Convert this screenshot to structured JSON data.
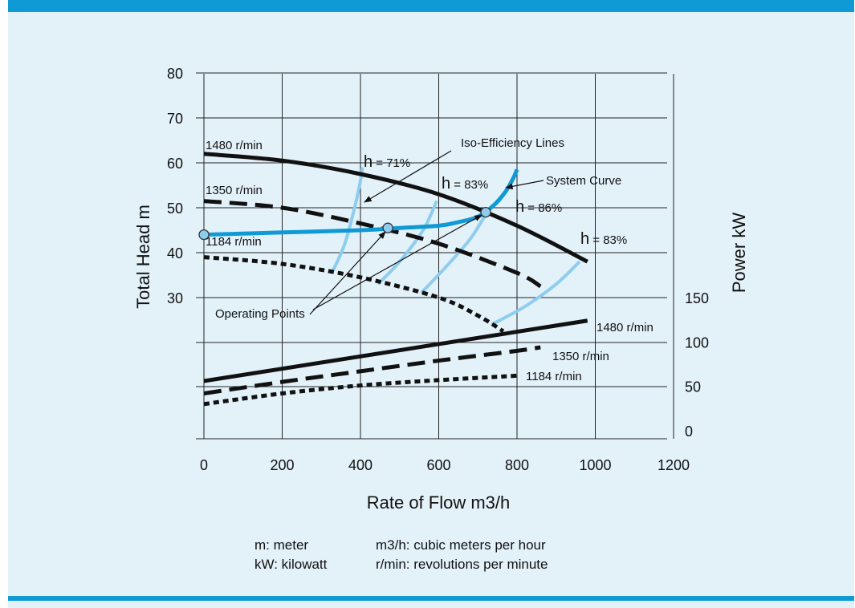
{
  "chart_data": {
    "type": "line",
    "xlabel": "Rate of Flow m3/h",
    "ylabel_left": "Total Head m",
    "ylabel_right": "Power kW",
    "x_ticks": [
      0,
      200,
      400,
      600,
      800,
      1000,
      1200
    ],
    "head_ticks": [
      30,
      40,
      50,
      60,
      70,
      80
    ],
    "power_ticks": [
      0,
      50,
      100,
      150
    ],
    "xlim": [
      0,
      1200
    ],
    "head_lim": [
      10,
      80
    ],
    "power_lim": [
      0,
      200
    ],
    "grid": true,
    "head_curves": [
      {
        "name": "1480 r/min",
        "style": "solid",
        "x": [
          0,
          200,
          400,
          600,
          800,
          980
        ],
        "y": [
          62,
          60.5,
          57.5,
          53,
          46,
          38
        ]
      },
      {
        "name": "1350 r/min",
        "style": "dashed",
        "x": [
          0,
          200,
          400,
          600,
          800,
          860
        ],
        "y": [
          51.5,
          50,
          46.5,
          42,
          35.5,
          32.5
        ]
      },
      {
        "name": "1184 r/min",
        "style": "dotted",
        "x": [
          0,
          200,
          400,
          600,
          700,
          765
        ],
        "y": [
          39,
          37.5,
          34.5,
          30,
          26,
          22.5
        ]
      }
    ],
    "power_curves": [
      {
        "name": "1480 r/min",
        "style": "solid",
        "x": [
          0,
          980
        ],
        "y": [
          56,
          124
        ]
      },
      {
        "name": "1350 r/min",
        "style": "dashed",
        "x": [
          0,
          200,
          400,
          600,
          800,
          860
        ],
        "y": [
          42,
          55,
          67,
          79,
          90,
          94
        ]
      },
      {
        "name": "1184 r/min",
        "style": "dotted",
        "x": [
          0,
          200,
          400,
          600,
          800
        ],
        "y": [
          30,
          42,
          51,
          57,
          62
        ]
      }
    ],
    "system_curve": {
      "name": "System Curve",
      "x": [
        0,
        200,
        400,
        500,
        600,
        650,
        700,
        740,
        770,
        790,
        800
      ],
      "y": [
        44,
        44.5,
        45,
        45.5,
        46,
        46.8,
        48,
        50.5,
        53.5,
        56.5,
        58.5
      ]
    },
    "iso_efficiency_lines": [
      {
        "label": "h = 71%",
        "x": [
          330,
          360,
          385,
          400,
          405
        ],
        "y": [
          36,
          42,
          50,
          56,
          59
        ]
      },
      {
        "label": "h = 83%",
        "x": [
          445,
          500,
          560,
          595
        ],
        "y": [
          33,
          38,
          45,
          51.5
        ]
      },
      {
        "label": "h = 86%",
        "x": [
          555,
          620,
          680,
          720
        ],
        "y": [
          31,
          37,
          43,
          48.5
        ]
      },
      {
        "label": "h = 83%",
        "x": [
          735,
          820,
          900,
          960
        ],
        "y": [
          24,
          28,
          33,
          38
        ]
      }
    ],
    "operating_points": [
      {
        "x": 0,
        "y": 44
      },
      {
        "x": 470,
        "y": 45.5
      },
      {
        "x": 720,
        "y": 49
      }
    ],
    "annotations": {
      "iso_efficiency": "Iso-Efficiency Lines",
      "system_curve": "System Curve",
      "operating_points": "Operating Points"
    },
    "colors": {
      "curve": "#111111",
      "system": "#0f9ad6",
      "iso": "#8fcdee",
      "point": "#8fcdee"
    }
  },
  "legend": {
    "m": "m: meter",
    "kw": "kW: kilowatt",
    "m3h": "m3/h: cubic meters per hour",
    "rmin": "r/min: revolutions per minute"
  }
}
